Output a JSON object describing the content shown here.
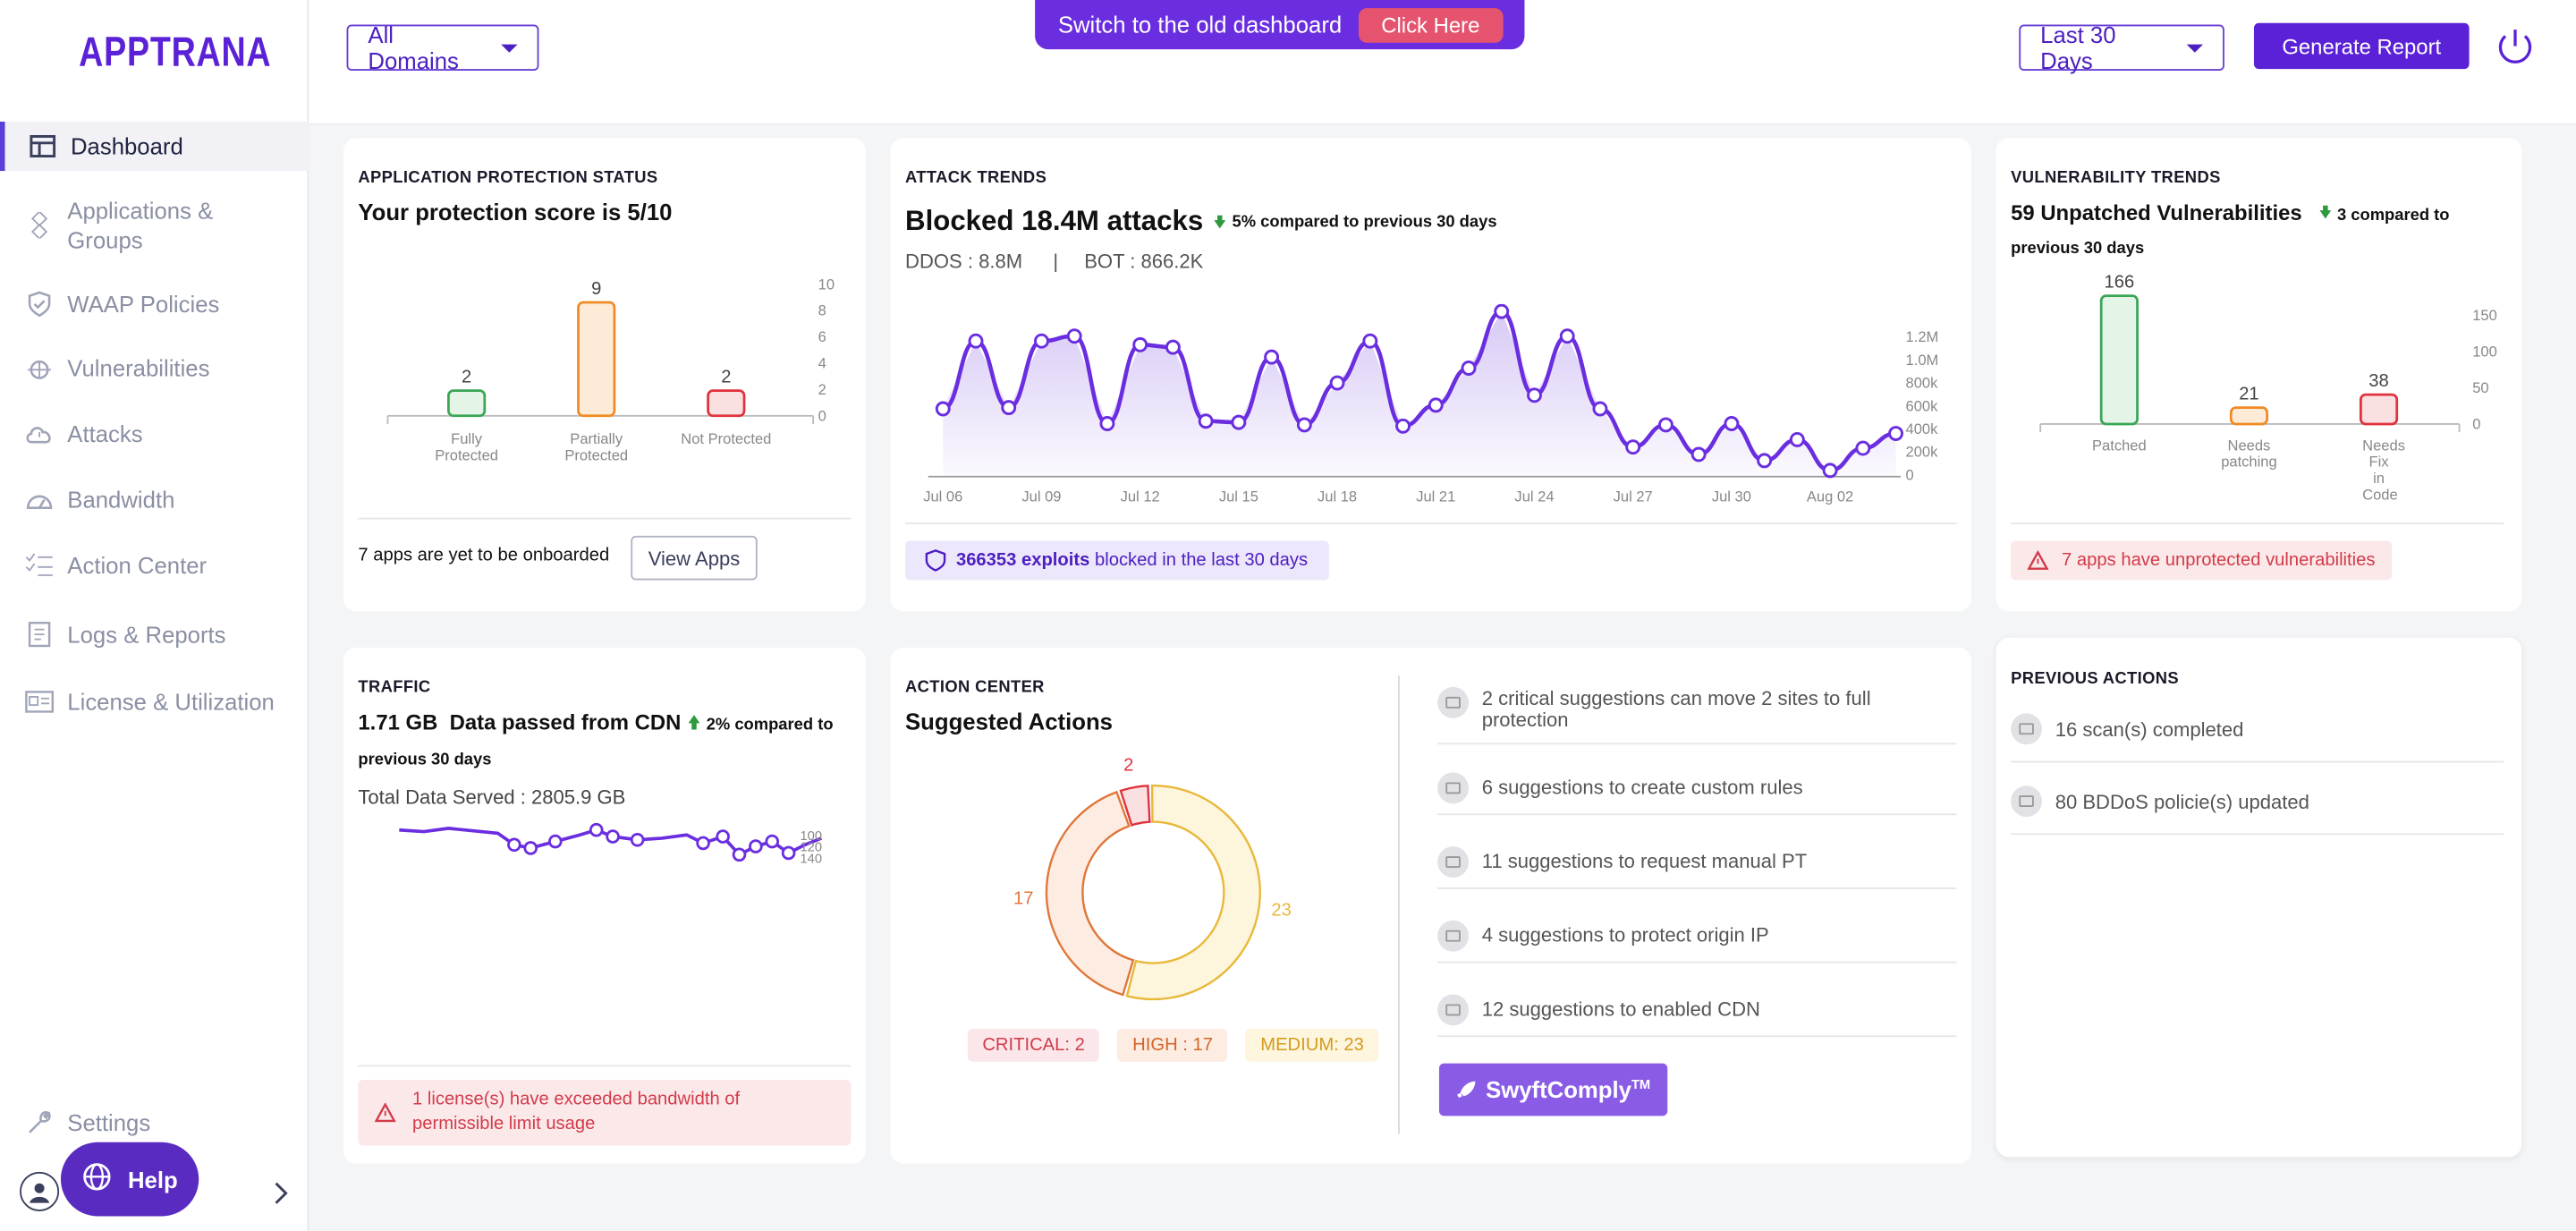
{
  "app": {
    "logo": "APPTRANA"
  },
  "sidebar": {
    "items": [
      {
        "label": "Dashboard",
        "icon": "dashboard-icon"
      },
      {
        "label": "Applications & Groups",
        "icon": "applications-icon"
      },
      {
        "label": "WAAP Policies",
        "icon": "shield-icon"
      },
      {
        "label": "Vulnerabilities",
        "icon": "bug-icon"
      },
      {
        "label": "Attacks",
        "icon": "cloud-alert-icon"
      },
      {
        "label": "Bandwidth",
        "icon": "gauge-icon"
      },
      {
        "label": "Action Center",
        "icon": "checklist-icon"
      },
      {
        "label": "Logs & Reports",
        "icon": "report-icon"
      },
      {
        "label": "License & Utilization",
        "icon": "license-icon"
      }
    ],
    "settings": "Settings",
    "help": "Help"
  },
  "topbar": {
    "domains": "All Domains",
    "banner_text": "Switch to the old dashboard",
    "banner_button": "Click Here",
    "range": "Last 30 Days",
    "generate": "Generate Report"
  },
  "protection": {
    "title": "APPLICATION PROTECTION STATUS",
    "headline": "Your protection score is 5/10",
    "onboard_text": "7 apps are yet to be onboarded",
    "view_apps": "View Apps",
    "chart_data": {
      "type": "bar",
      "categories": [
        "Fully Protected",
        "Partially Protected",
        "Not Protected"
      ],
      "values": [
        2,
        9,
        2
      ],
      "ylim": [
        0,
        10
      ],
      "yticks": [
        "10",
        "8",
        "6",
        "4",
        "2",
        "0"
      ],
      "colors": [
        "#3aa655",
        "#f08a24",
        "#e0323c"
      ]
    }
  },
  "attacks": {
    "title": "ATTACK TRENDS",
    "headline": "Blocked 18.4M attacks",
    "delta": "5% compared to previous 30 days",
    "ddos": "DDOS : 8.8M",
    "bot": "BOT : 866.2K",
    "exploits_bold": "366353 exploits",
    "exploits_rest": "blocked in the last 30 days",
    "chart_data": {
      "type": "area",
      "x": [
        "Jul 06",
        "Jul 07",
        "Jul 08",
        "Jul 09",
        "Jul 10",
        "Jul 11",
        "Jul 12",
        "Jul 13",
        "Jul 14",
        "Jul 15",
        "Jul 16",
        "Jul 17",
        "Jul 18",
        "Jul 19",
        "Jul 20",
        "Jul 21",
        "Jul 22",
        "Jul 23",
        "Jul 24",
        "Jul 25",
        "Jul 26",
        "Jul 27",
        "Jul 28",
        "Jul 29",
        "Jul 30",
        "Jul 31",
        "Aug 01",
        "Aug 02",
        "Aug 03",
        "Aug 04"
      ],
      "x_ticks": [
        "Jul 06",
        "Jul 09",
        "Jul 12",
        "Jul 15",
        "Jul 18",
        "Jul 21",
        "Jul 24",
        "Jul 27",
        "Jul 30",
        "Aug 02"
      ],
      "y_ticks": [
        "1.2M",
        "1.0M",
        "800k",
        "600k",
        "400k",
        "200k",
        "0"
      ],
      "values": [
        550000,
        1100000,
        560000,
        1100000,
        1140000,
        430000,
        1070000,
        1050000,
        450000,
        440000,
        970000,
        420000,
        760000,
        1100000,
        410000,
        580000,
        880000,
        1340000,
        660000,
        1140000,
        550000,
        240000,
        420000,
        180000,
        430000,
        130000,
        300000,
        50000,
        230000,
        350000
      ],
      "ylim": [
        0,
        1400000
      ]
    }
  },
  "vulns": {
    "title": "VULNERABILITY TRENDS",
    "headline": "59 Unpatched Vulnerabilities",
    "delta": "3 compared to previous 30 days",
    "alert": "7 apps have unprotected vulnerabilities",
    "chart_data": {
      "type": "bar",
      "categories": [
        "Patched",
        "Needs patching",
        "Needs Fix in Code"
      ],
      "values": [
        166,
        21,
        38
      ],
      "ylim": [
        0,
        200
      ],
      "yticks": [
        "150",
        "100",
        "50",
        "0"
      ],
      "colors": [
        "#3aa655",
        "#f08a24",
        "#e0323c"
      ]
    }
  },
  "traffic": {
    "title": "TRAFFIC",
    "amount": "1.71 GB",
    "headline": "Data passed from CDN",
    "delta": "2% compared to previous 30 days",
    "total": "Total Data Served : 2805.9 GB",
    "yticks": [
      "100",
      "120",
      "140"
    ],
    "alert": "1 license(s) have exceeded bandwidth of permissible limit usage"
  },
  "action": {
    "title": "ACTION CENTER",
    "headline": "Suggested Actions",
    "chart_data": {
      "type": "pie",
      "labels": [
        "CRITICAL",
        "HIGH",
        "MEDIUM"
      ],
      "values": [
        2,
        17,
        23
      ],
      "colors": [
        "#e0323c",
        "#e0763a",
        "#e8b83a"
      ]
    },
    "legend": [
      "CRITICAL: 2",
      "HIGH : 17",
      "MEDIUM: 23"
    ],
    "suggestions": [
      "2 critical suggestions can move 2 sites to full protection",
      "6 suggestions to create custom rules",
      "11 suggestions to request manual PT",
      "4 suggestions to protect origin IP",
      "12 suggestions to enabled CDN"
    ],
    "swyft": "SwyftComply",
    "swyft_tm": "TM"
  },
  "previous": {
    "title": "PREVIOUS ACTIONS",
    "items": [
      "16 scan(s) completed",
      "80 BDDoS policie(s) updated"
    ]
  }
}
